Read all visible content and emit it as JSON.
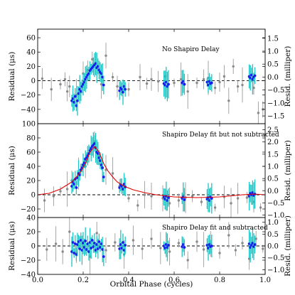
{
  "chart_data": [
    {
      "type": "scatter",
      "panel": "top",
      "annotation": "No Shapiro Delay",
      "xlabel": "",
      "ylabel": "Residual (μs)",
      "y2label": "Resid. (milliper)",
      "xlim": [
        0.0,
        1.0
      ],
      "ylim": [
        -60,
        72
      ],
      "y2lim": [
        -1.8,
        1.85
      ],
      "yticks": [
        -40,
        -20,
        0,
        20,
        40,
        60
      ],
      "y2ticks": [
        -1.5,
        -1.0,
        -0.5,
        0.0,
        0.5,
        1.0,
        1.5
      ],
      "grid": false,
      "zero_line": 0,
      "series": [
        {
          "kind": "grey-points",
          "color": "#8a8a8a",
          "x": [
            0.02,
            0.06,
            0.1,
            0.12,
            0.13,
            0.14,
            0.16,
            0.17,
            0.2,
            0.22,
            0.24,
            0.28,
            0.3,
            0.33,
            0.35,
            0.4,
            0.45,
            0.48,
            0.5,
            0.53,
            0.56,
            0.6,
            0.63,
            0.66,
            0.7,
            0.73,
            0.75,
            0.78,
            0.8,
            0.82,
            0.84,
            0.86,
            0.88,
            0.9,
            0.93,
            0.95,
            0.97,
            0.99
          ],
          "y": [
            3,
            -12,
            -5,
            2,
            -15,
            -8,
            -30,
            -20,
            10,
            15,
            30,
            -5,
            35,
            5,
            -8,
            -12,
            5,
            -4,
            2,
            -1,
            6,
            -3,
            2,
            -15,
            -3,
            2,
            4,
            -10,
            -2,
            6,
            -28,
            20,
            -8,
            -6,
            5,
            -10,
            -45,
            -40
          ]
        },
        {
          "kind": "blue-points",
          "color": "#1a1aee",
          "x": [
            0.15,
            0.155,
            0.16,
            0.165,
            0.17,
            0.175,
            0.18,
            0.185,
            0.19,
            0.195,
            0.2,
            0.205,
            0.21,
            0.215,
            0.22,
            0.225,
            0.23,
            0.235,
            0.24,
            0.245,
            0.25,
            0.255,
            0.26,
            0.265,
            0.27,
            0.275,
            0.28,
            0.285,
            0.29,
            0.36,
            0.365,
            0.37,
            0.375,
            0.38,
            0.385,
            0.555,
            0.56,
            0.565,
            0.57,
            0.575,
            0.635,
            0.64,
            0.645,
            0.745,
            0.75,
            0.755,
            0.76,
            0.765,
            0.93,
            0.935,
            0.94,
            0.945,
            0.95,
            0.955
          ],
          "y": [
            -28,
            -25,
            -30,
            -22,
            -35,
            -28,
            -18,
            -12,
            -15,
            -8,
            -5,
            -2,
            2,
            5,
            8,
            10,
            14,
            16,
            18,
            20,
            22,
            24,
            18,
            20,
            15,
            12,
            10,
            5,
            -6,
            -14,
            -10,
            -12,
            -16,
            -8,
            -12,
            -4,
            -6,
            -2,
            -8,
            -5,
            -3,
            -1,
            -5,
            -2,
            -6,
            -1,
            -4,
            -3,
            6,
            4,
            8,
            2,
            5,
            7
          ]
        }
      ]
    },
    {
      "type": "scatter",
      "panel": "middle",
      "annotation": "Shapiro Delay fit but not subtracted",
      "xlabel": "",
      "ylabel": "Residual (μs)",
      "y2label": "Resid. (milliper)",
      "xlim": [
        0.0,
        1.0
      ],
      "ylim": [
        -32,
        100
      ],
      "y2lim": [
        -1.1,
        2.75
      ],
      "yticks": [
        -20,
        0,
        20,
        40,
        60,
        80,
        100
      ],
      "y2ticks": [
        -1.0,
        -0.5,
        0.0,
        0.5,
        1.0,
        1.5,
        2.0,
        2.5
      ],
      "grid": false,
      "zero_line": 0,
      "model_curve": {
        "color": "#e00000",
        "x": [
          0.0,
          0.05,
          0.1,
          0.13,
          0.15,
          0.17,
          0.19,
          0.21,
          0.23,
          0.25,
          0.27,
          0.29,
          0.31,
          0.33,
          0.35,
          0.38,
          0.42,
          0.47,
          0.52,
          0.6,
          0.7,
          0.8,
          0.9,
          0.95,
          1.0
        ],
        "y": [
          0,
          2,
          8,
          14,
          18,
          25,
          33,
          44,
          60,
          68,
          60,
          44,
          33,
          25,
          18,
          12,
          7,
          3,
          0,
          -3,
          -4,
          -3,
          0,
          1,
          0
        ]
      },
      "series": [
        {
          "kind": "grey-points",
          "color": "#8a8a8a",
          "x": [
            0.03,
            0.07,
            0.1,
            0.13,
            0.15,
            0.18,
            0.21,
            0.25,
            0.27,
            0.3,
            0.33,
            0.36,
            0.4,
            0.44,
            0.47,
            0.5,
            0.55,
            0.58,
            0.62,
            0.65,
            0.68,
            0.72,
            0.75,
            0.78,
            0.82,
            0.85,
            0.88,
            0.92,
            0.95,
            0.98
          ],
          "y": [
            -8,
            -2,
            5,
            8,
            20,
            30,
            40,
            75,
            55,
            35,
            30,
            12,
            -5,
            -15,
            0,
            -2,
            -5,
            -12,
            -8,
            -4,
            -2,
            -10,
            -5,
            -18,
            -3,
            -12,
            -5,
            -4,
            -10,
            -18
          ]
        },
        {
          "kind": "blue-points",
          "color": "#1a1aee",
          "x": [
            0.15,
            0.155,
            0.16,
            0.165,
            0.17,
            0.175,
            0.18,
            0.185,
            0.19,
            0.195,
            0.2,
            0.205,
            0.21,
            0.215,
            0.22,
            0.225,
            0.23,
            0.235,
            0.24,
            0.245,
            0.25,
            0.255,
            0.26,
            0.265,
            0.27,
            0.275,
            0.28,
            0.285,
            0.29,
            0.36,
            0.365,
            0.37,
            0.375,
            0.38,
            0.385,
            0.555,
            0.56,
            0.565,
            0.57,
            0.575,
            0.635,
            0.64,
            0.645,
            0.745,
            0.75,
            0.755,
            0.76,
            0.765,
            0.93,
            0.935,
            0.94,
            0.945,
            0.95,
            0.955
          ],
          "y": [
            12,
            18,
            15,
            22,
            10,
            24,
            30,
            28,
            35,
            38,
            42,
            45,
            50,
            52,
            55,
            58,
            62,
            65,
            68,
            70,
            72,
            66,
            60,
            58,
            52,
            48,
            42,
            38,
            25,
            10,
            14,
            12,
            8,
            15,
            11,
            -3,
            -6,
            -2,
            -8,
            -4,
            -5,
            -3,
            -7,
            -6,
            -4,
            -8,
            -3,
            -5,
            -2,
            2,
            0,
            3,
            -1,
            1
          ]
        }
      ]
    },
    {
      "type": "scatter",
      "panel": "bottom",
      "annotation": "Shapiro Delay fit and subtracted",
      "xlabel": "Orbital Phase (cycles)",
      "ylabel": "Residual (μs)",
      "y2label": "Resid. (milliper)",
      "xlim": [
        0.0,
        1.0
      ],
      "ylim": [
        -40,
        40
      ],
      "y2lim": [
        -1.2,
        1.2
      ],
      "xticks": [
        0.0,
        0.2,
        0.4,
        0.6,
        0.8,
        1.0
      ],
      "yticks": [
        -40,
        -20,
        0,
        20,
        40
      ],
      "y2ticks": [
        -1.0,
        -0.5,
        0.0,
        0.5,
        1.0
      ],
      "grid": false,
      "zero_line": 0,
      "series": [
        {
          "kind": "grey-points",
          "color": "#8a8a8a",
          "x": [
            0.04,
            0.08,
            0.11,
            0.14,
            0.17,
            0.2,
            0.23,
            0.26,
            0.3,
            0.34,
            0.38,
            0.42,
            0.46,
            0.5,
            0.54,
            0.58,
            0.62,
            0.66,
            0.7,
            0.73,
            0.76,
            0.8,
            0.84,
            0.87,
            0.9,
            0.93,
            0.96,
            0.99
          ],
          "y": [
            -5,
            3,
            -8,
            20,
            -10,
            6,
            -15,
            18,
            -6,
            5,
            -12,
            8,
            -4,
            10,
            -3,
            -8,
            4,
            -20,
            6,
            -5,
            3,
            -10,
            15,
            -6,
            4,
            -18,
            10,
            -4
          ]
        },
        {
          "kind": "blue-points",
          "color": "#1a1aee",
          "x": [
            0.15,
            0.155,
            0.16,
            0.165,
            0.17,
            0.175,
            0.18,
            0.185,
            0.19,
            0.195,
            0.2,
            0.205,
            0.21,
            0.215,
            0.22,
            0.225,
            0.23,
            0.235,
            0.24,
            0.245,
            0.25,
            0.255,
            0.26,
            0.265,
            0.27,
            0.275,
            0.28,
            0.285,
            0.29,
            0.36,
            0.365,
            0.37,
            0.375,
            0.38,
            0.385,
            0.555,
            0.56,
            0.565,
            0.57,
            0.575,
            0.635,
            0.64,
            0.645,
            0.745,
            0.75,
            0.755,
            0.76,
            0.765,
            0.93,
            0.935,
            0.94,
            0.945,
            0.95,
            0.955
          ],
          "y": [
            -8,
            5,
            -10,
            3,
            -12,
            2,
            6,
            -4,
            8,
            -6,
            4,
            -2,
            7,
            -5,
            3,
            -8,
            5,
            -3,
            8,
            -1,
            4,
            -6,
            2,
            -4,
            6,
            -2,
            3,
            -5,
            -15,
            -4,
            2,
            -3,
            5,
            -6,
            1,
            0,
            -3,
            2,
            -2,
            1,
            -1,
            2,
            -2,
            1,
            -3,
            2,
            -1,
            0,
            3,
            -2,
            1,
            4,
            -1,
            2
          ]
        }
      ]
    }
  ]
}
